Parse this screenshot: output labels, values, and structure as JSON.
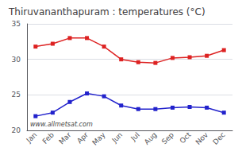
{
  "chart_data": {
    "type": "line",
    "title": "Thiruvananthapuram : temperatures (°C)",
    "categories": [
      "Jan",
      "Feb",
      "Mar",
      "Apr",
      "May",
      "Jun",
      "Jul",
      "Aug",
      "Sep",
      "Oct",
      "Nov",
      "Dec"
    ],
    "series": [
      {
        "color": "#dd2222",
        "values": [
          31.8,
          32.2,
          33.0,
          33.0,
          31.8,
          30.0,
          29.6,
          29.5,
          30.2,
          30.3,
          30.5,
          31.3
        ]
      },
      {
        "color": "#2222cc",
        "values": [
          22.0,
          22.5,
          24.0,
          25.2,
          24.8,
          23.5,
          23.0,
          23.0,
          23.2,
          23.3,
          23.2,
          22.5
        ]
      }
    ],
    "ylim": [
      20,
      35
    ],
    "yticks": [
      20,
      25,
      30,
      35
    ],
    "grid": true,
    "marker": "square",
    "annotations": [
      "www.allmetsat.com"
    ]
  }
}
